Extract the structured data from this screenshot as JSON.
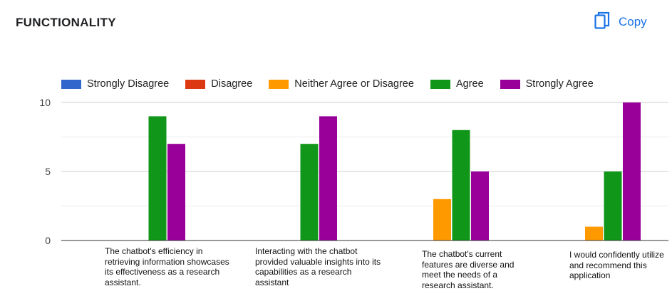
{
  "header": {
    "title": "FUNCTIONALITY",
    "copy_label": "Copy",
    "copy_icon": "copy-icon"
  },
  "colors": {
    "accent": "#1a73e8"
  },
  "chart_data": {
    "type": "bar",
    "title": "",
    "xlabel": "",
    "ylabel": "",
    "ylim": [
      0,
      10
    ],
    "yticks": [
      "0",
      "5",
      "10"
    ],
    "grid": true,
    "legend_position": "top",
    "categories": [
      "The chatbot's efficiency in retrieving information showcases its effectiveness as a research assistant.",
      "Interacting with the chatbot provided valuable insights into its capabilities as a research assistant",
      "The chatbot's current features are diverse and meet the needs of a research assistant.",
      "I would confidently utilize and recommend this application"
    ],
    "series": [
      {
        "name": "Strongly Disagree",
        "color": "#3366cc",
        "values": [
          0,
          0,
          0,
          0
        ]
      },
      {
        "name": "Disagree",
        "color": "#dc3912",
        "values": [
          0,
          0,
          0,
          0
        ]
      },
      {
        "name": "Neither Agree or Disagree",
        "color": "#ff9900",
        "values": [
          0,
          0,
          3,
          1
        ]
      },
      {
        "name": "Agree",
        "color": "#109618",
        "values": [
          9,
          7,
          8,
          5
        ]
      },
      {
        "name": "Strongly Agree",
        "color": "#990099",
        "values": [
          7,
          9,
          5,
          10
        ]
      }
    ]
  }
}
